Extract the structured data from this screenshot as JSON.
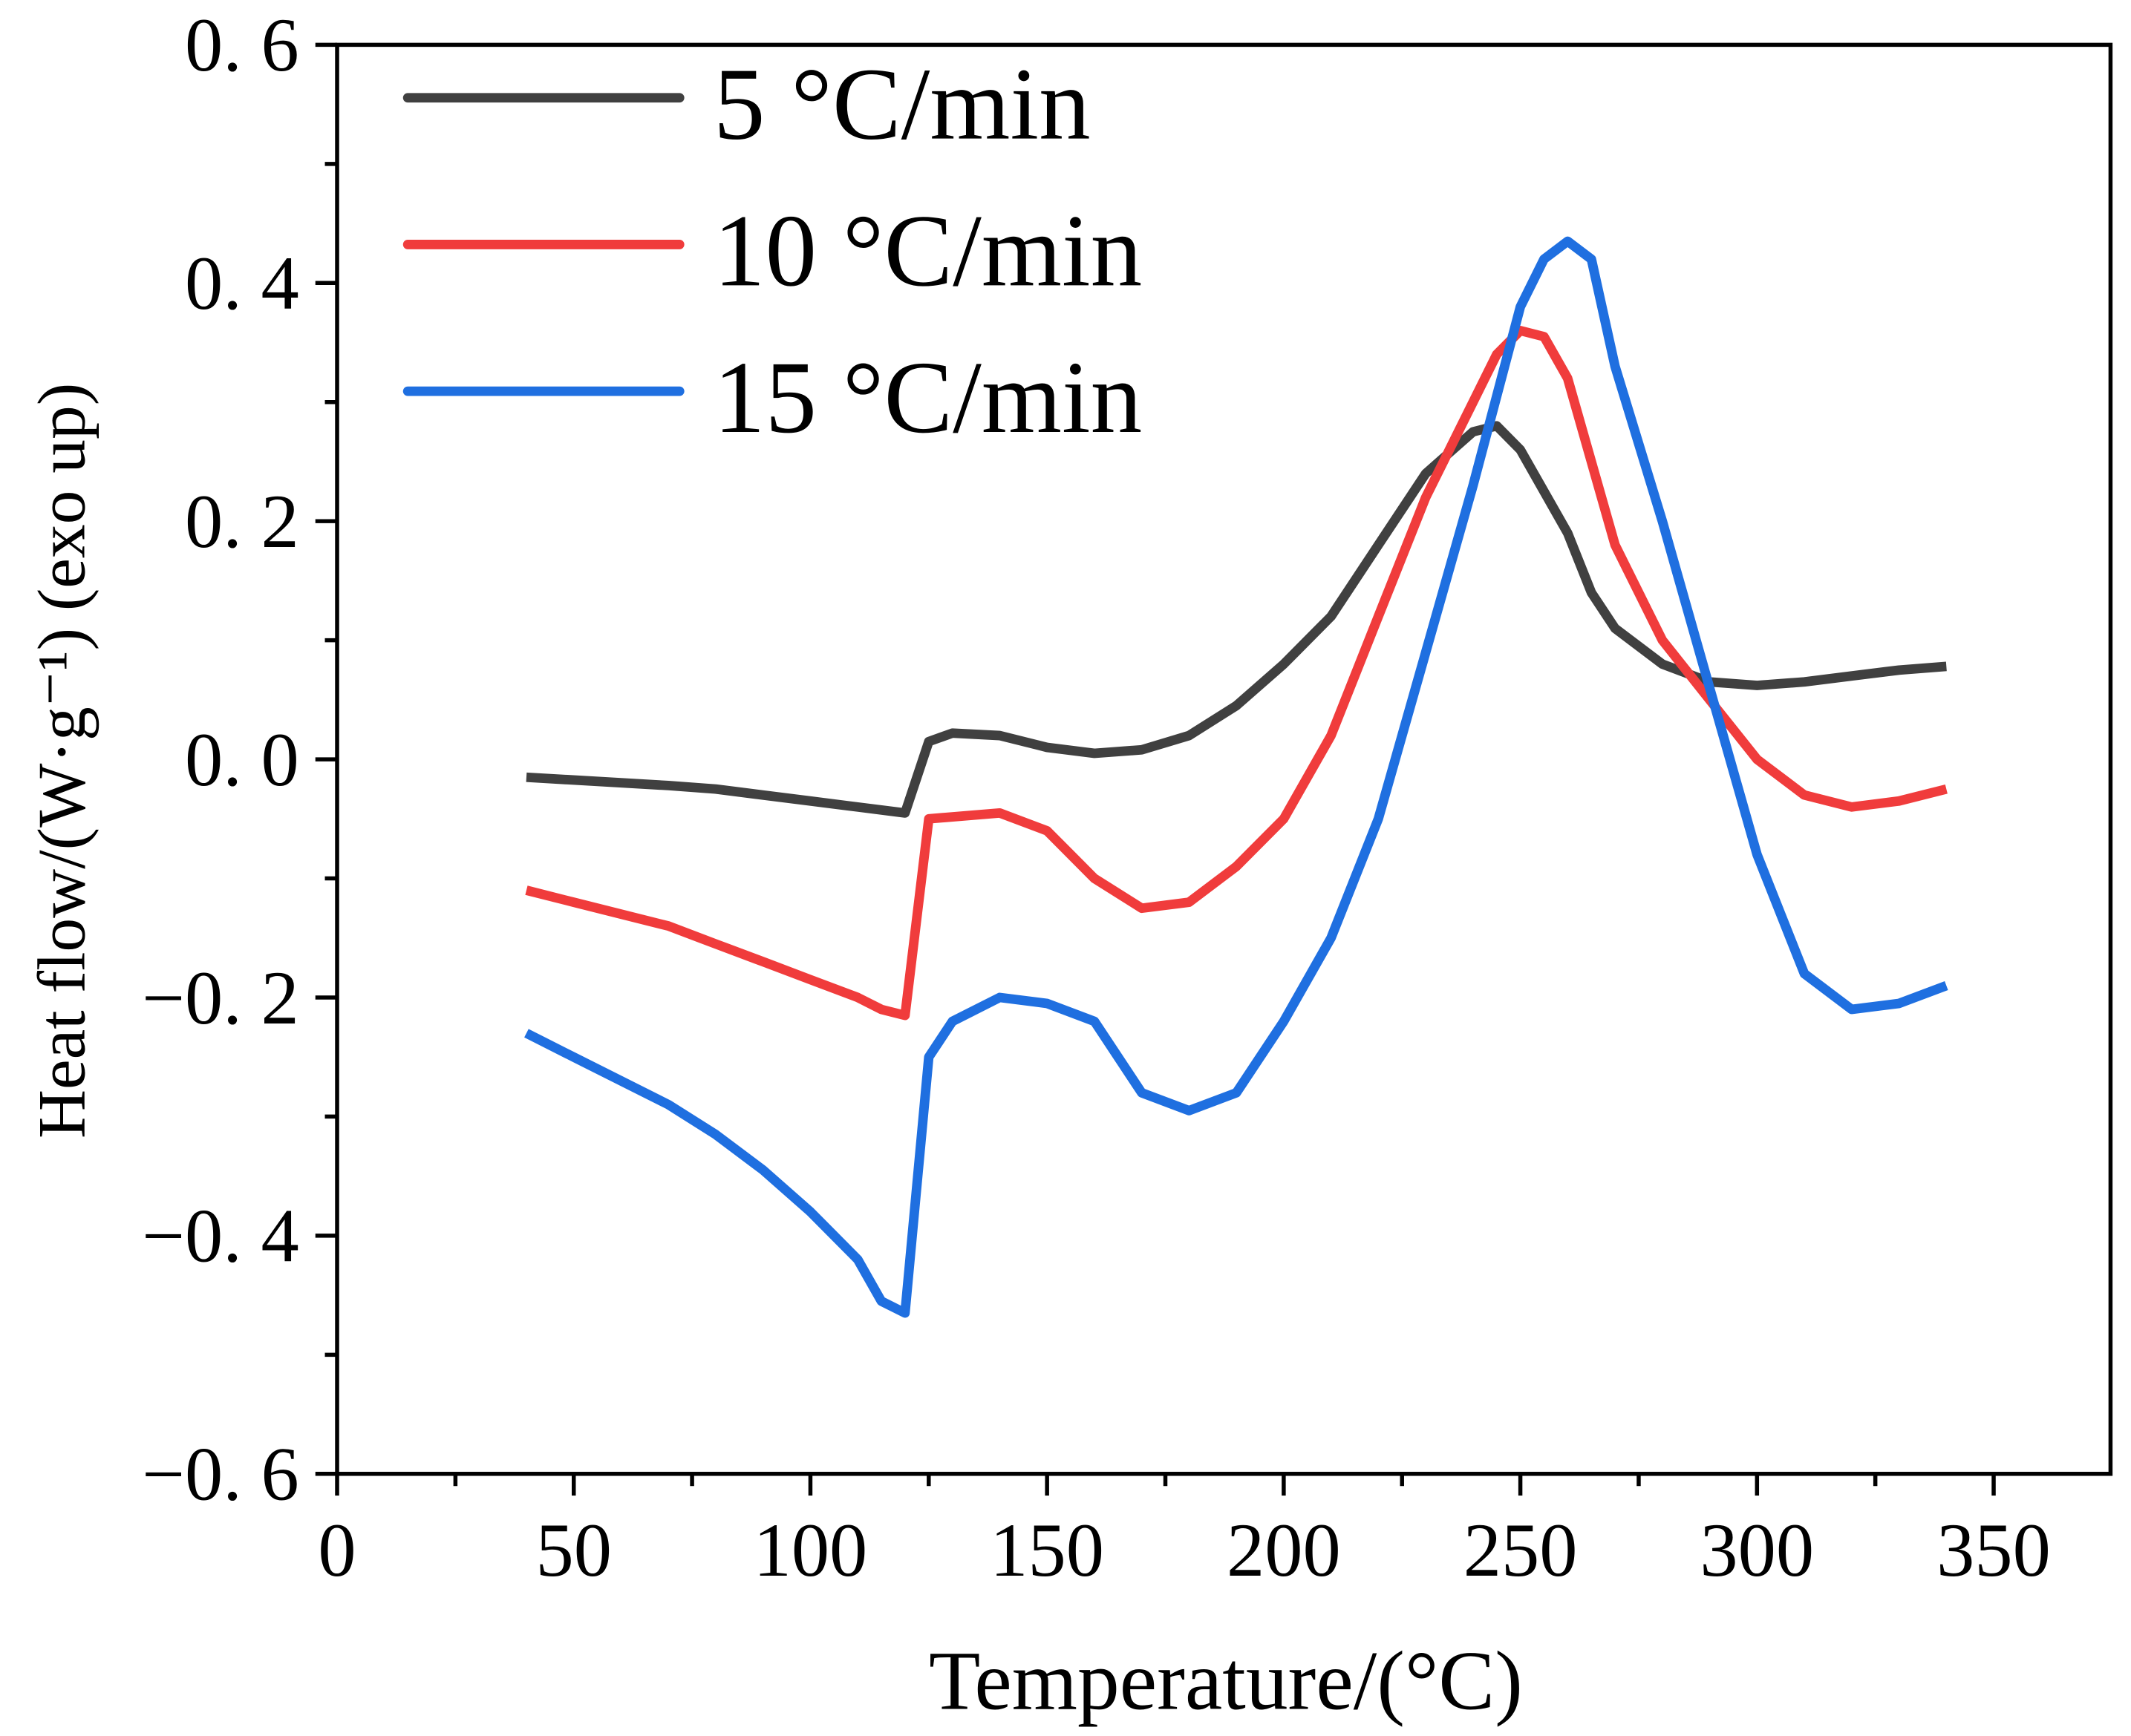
{
  "chart_data": {
    "type": "line",
    "title": "",
    "xlabel": "Temperature/(°C)",
    "ylabel": "Heat flow/(W·g⁻¹) (exo up)",
    "xlim": [
      0,
      375
    ],
    "ylim": [
      -0.6,
      0.6
    ],
    "x_ticks": [
      0,
      50,
      100,
      150,
      200,
      250,
      300,
      350
    ],
    "x_tick_labels": [
      "0",
      "50",
      "100",
      "150",
      "200",
      "250",
      "300",
      "350"
    ],
    "y_ticks": [
      -0.6,
      -0.4,
      -0.2,
      0.0,
      0.2,
      0.4,
      0.6
    ],
    "y_tick_labels": [
      "−0. 6",
      "−0. 4",
      "−0. 2",
      "0. 0",
      "0. 2",
      "0. 4",
      "0. 6"
    ],
    "grid": false,
    "legend_position": "top-left",
    "series": [
      {
        "name": "5 °C/min",
        "color": "#404040",
        "x": [
          40,
          70,
          80,
          90,
          100,
          110,
          120,
          125,
          130,
          140,
          150,
          160,
          170,
          180,
          190,
          200,
          210,
          220,
          230,
          240,
          245,
          250,
          260,
          265,
          270,
          280,
          290,
          300,
          310,
          320,
          330,
          340
        ],
        "y": [
          -0.015,
          -0.022,
          -0.025,
          -0.03,
          -0.035,
          -0.04,
          -0.045,
          0.015,
          0.022,
          0.02,
          0.01,
          0.005,
          0.008,
          0.02,
          0.045,
          0.08,
          0.12,
          0.18,
          0.24,
          0.275,
          0.28,
          0.26,
          0.19,
          0.14,
          0.11,
          0.08,
          0.065,
          0.062,
          0.065,
          0.07,
          0.075,
          0.078
        ]
      },
      {
        "name": "10 °C/min",
        "color": "#f03c3c",
        "x": [
          40,
          50,
          70,
          80,
          90,
          100,
          110,
          115,
          120,
          125,
          140,
          150,
          160,
          170,
          180,
          190,
          200,
          210,
          220,
          230,
          240,
          245,
          250,
          255,
          260,
          270,
          280,
          290,
          300,
          310,
          320,
          330,
          340
        ],
        "y": [
          -0.11,
          -0.12,
          -0.14,
          -0.155,
          -0.17,
          -0.185,
          -0.2,
          -0.21,
          -0.215,
          -0.05,
          -0.045,
          -0.06,
          -0.1,
          -0.125,
          -0.12,
          -0.09,
          -0.05,
          0.02,
          0.12,
          0.22,
          0.3,
          0.34,
          0.36,
          0.355,
          0.32,
          0.18,
          0.1,
          0.05,
          0.0,
          -0.03,
          -0.04,
          -0.035,
          -0.025
        ]
      },
      {
        "name": "15 °C/min",
        "color": "#1f6fe0",
        "x": [
          40,
          50,
          70,
          80,
          90,
          100,
          110,
          115,
          120,
          125,
          130,
          140,
          150,
          160,
          170,
          180,
          190,
          200,
          210,
          220,
          230,
          240,
          250,
          255,
          260,
          265,
          270,
          280,
          290,
          300,
          310,
          320,
          330,
          340
        ],
        "y": [
          -0.23,
          -0.25,
          -0.29,
          -0.315,
          -0.345,
          -0.38,
          -0.42,
          -0.455,
          -0.465,
          -0.25,
          -0.22,
          -0.2,
          -0.205,
          -0.22,
          -0.28,
          -0.295,
          -0.28,
          -0.22,
          -0.15,
          -0.05,
          0.09,
          0.23,
          0.38,
          0.42,
          0.435,
          0.42,
          0.33,
          0.2,
          0.06,
          -0.08,
          -0.18,
          -0.21,
          -0.205,
          -0.19
        ]
      }
    ]
  }
}
